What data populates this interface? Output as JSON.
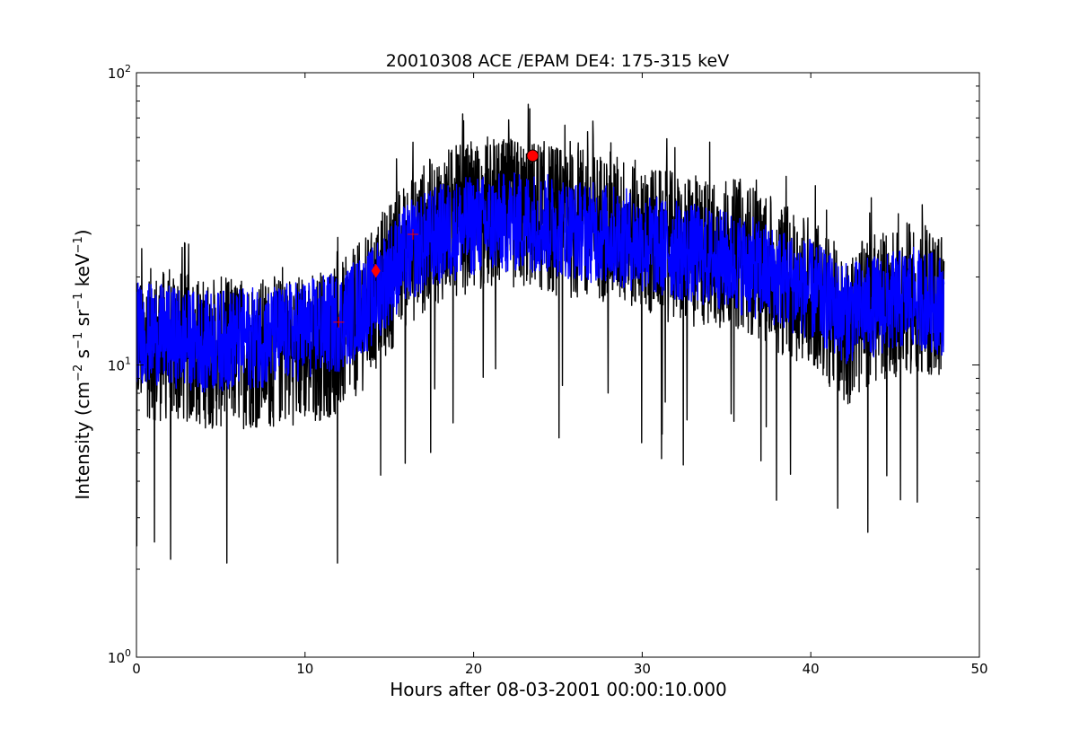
{
  "chart_data": {
    "type": "line",
    "title": "20010308 ACE /EPAM DE4: 175-315 keV",
    "xlabel": "Hours after 08-03-2001 00:00:10.000",
    "ylabel": {
      "prefix": "Intensity (cm",
      "exp1": "−2",
      "mid1": " s",
      "exp2": "−1",
      "mid2": " sr",
      "exp3": "−1",
      "mid3": " keV",
      "exp4": "−1",
      "suffix": ")"
    },
    "xlim": [
      0,
      50
    ],
    "ylim": [
      1,
      100
    ],
    "yscale": "log",
    "grid": false,
    "x_ticks": [
      0,
      10,
      20,
      30,
      40,
      50
    ],
    "x_tick_labels": [
      "0",
      "10",
      "20",
      "30",
      "40",
      "50"
    ],
    "y_ticks": [
      1,
      10,
      100
    ],
    "y_tick_labels": [
      {
        "base": "10",
        "exp": "0"
      },
      {
        "base": "10",
        "exp": "1"
      },
      {
        "base": "10",
        "exp": "2"
      }
    ],
    "series": [
      {
        "color": "#000000",
        "style": "raw",
        "x_range": [
          0,
          47.9
        ],
        "envelope_x": [
          0,
          4,
          8,
          12,
          14,
          16,
          18,
          20,
          23.5,
          26,
          28,
          30,
          33,
          36,
          38,
          40,
          42,
          44,
          46,
          47.9
        ],
        "envelope_y": [
          12,
          11,
          11,
          12,
          16,
          24,
          30,
          32,
          33,
          30,
          30,
          27,
          24,
          24,
          20,
          18,
          13,
          16,
          17,
          16
        ]
      },
      {
        "color": "#0000ff",
        "style": "smoothed",
        "x_range": [
          0,
          47.9
        ],
        "envelope_x": [
          0,
          4,
          8,
          12,
          14,
          16,
          18,
          20,
          23.5,
          26,
          28,
          30,
          33,
          36,
          38,
          40,
          42,
          44,
          46,
          47.9
        ],
        "envelope_y": [
          13,
          12,
          12.5,
          14,
          17,
          24,
          28,
          30,
          31,
          29,
          28,
          26,
          24,
          22,
          20,
          18,
          15,
          16,
          17,
          16
        ]
      }
    ],
    "markers": [
      {
        "shape": "plus",
        "x": 12.0,
        "y": 14,
        "color": "#ff0000"
      },
      {
        "shape": "diamond",
        "x": 14.2,
        "y": 21,
        "color": "#ff0000"
      },
      {
        "shape": "plus",
        "x": 16.4,
        "y": 28,
        "color": "#ff0000"
      },
      {
        "shape": "circle",
        "x": 23.5,
        "y": 52,
        "color": "#ff0000"
      }
    ]
  }
}
